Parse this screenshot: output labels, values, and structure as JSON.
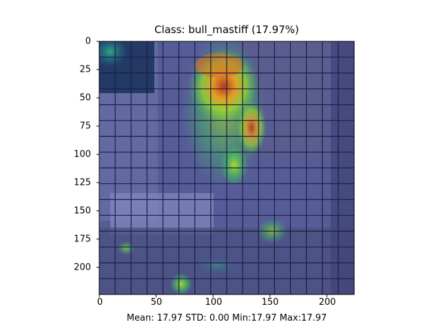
{
  "figure": {
    "title": "Class: bull_mastiff (17.97%)",
    "stats_line": "Mean: 17.97 STD: 0.00 Min:17.97 Max:17.97",
    "y_ticks": [
      "0",
      "25",
      "50",
      "75",
      "100",
      "125",
      "150",
      "175",
      "200"
    ],
    "x_ticks": [
      "0",
      "50",
      "100",
      "150",
      "200"
    ],
    "image_extent": [
      0,
      224
    ],
    "grid_cells": 16,
    "colors": {
      "overlay_base": "#4a4f8c",
      "grid_line": "#1a2040",
      "hot": "#e8501c",
      "warm": "#f0c020",
      "mid": "#60d040",
      "cool": "#40b0c0",
      "masked_patch": "#17305c"
    }
  }
}
